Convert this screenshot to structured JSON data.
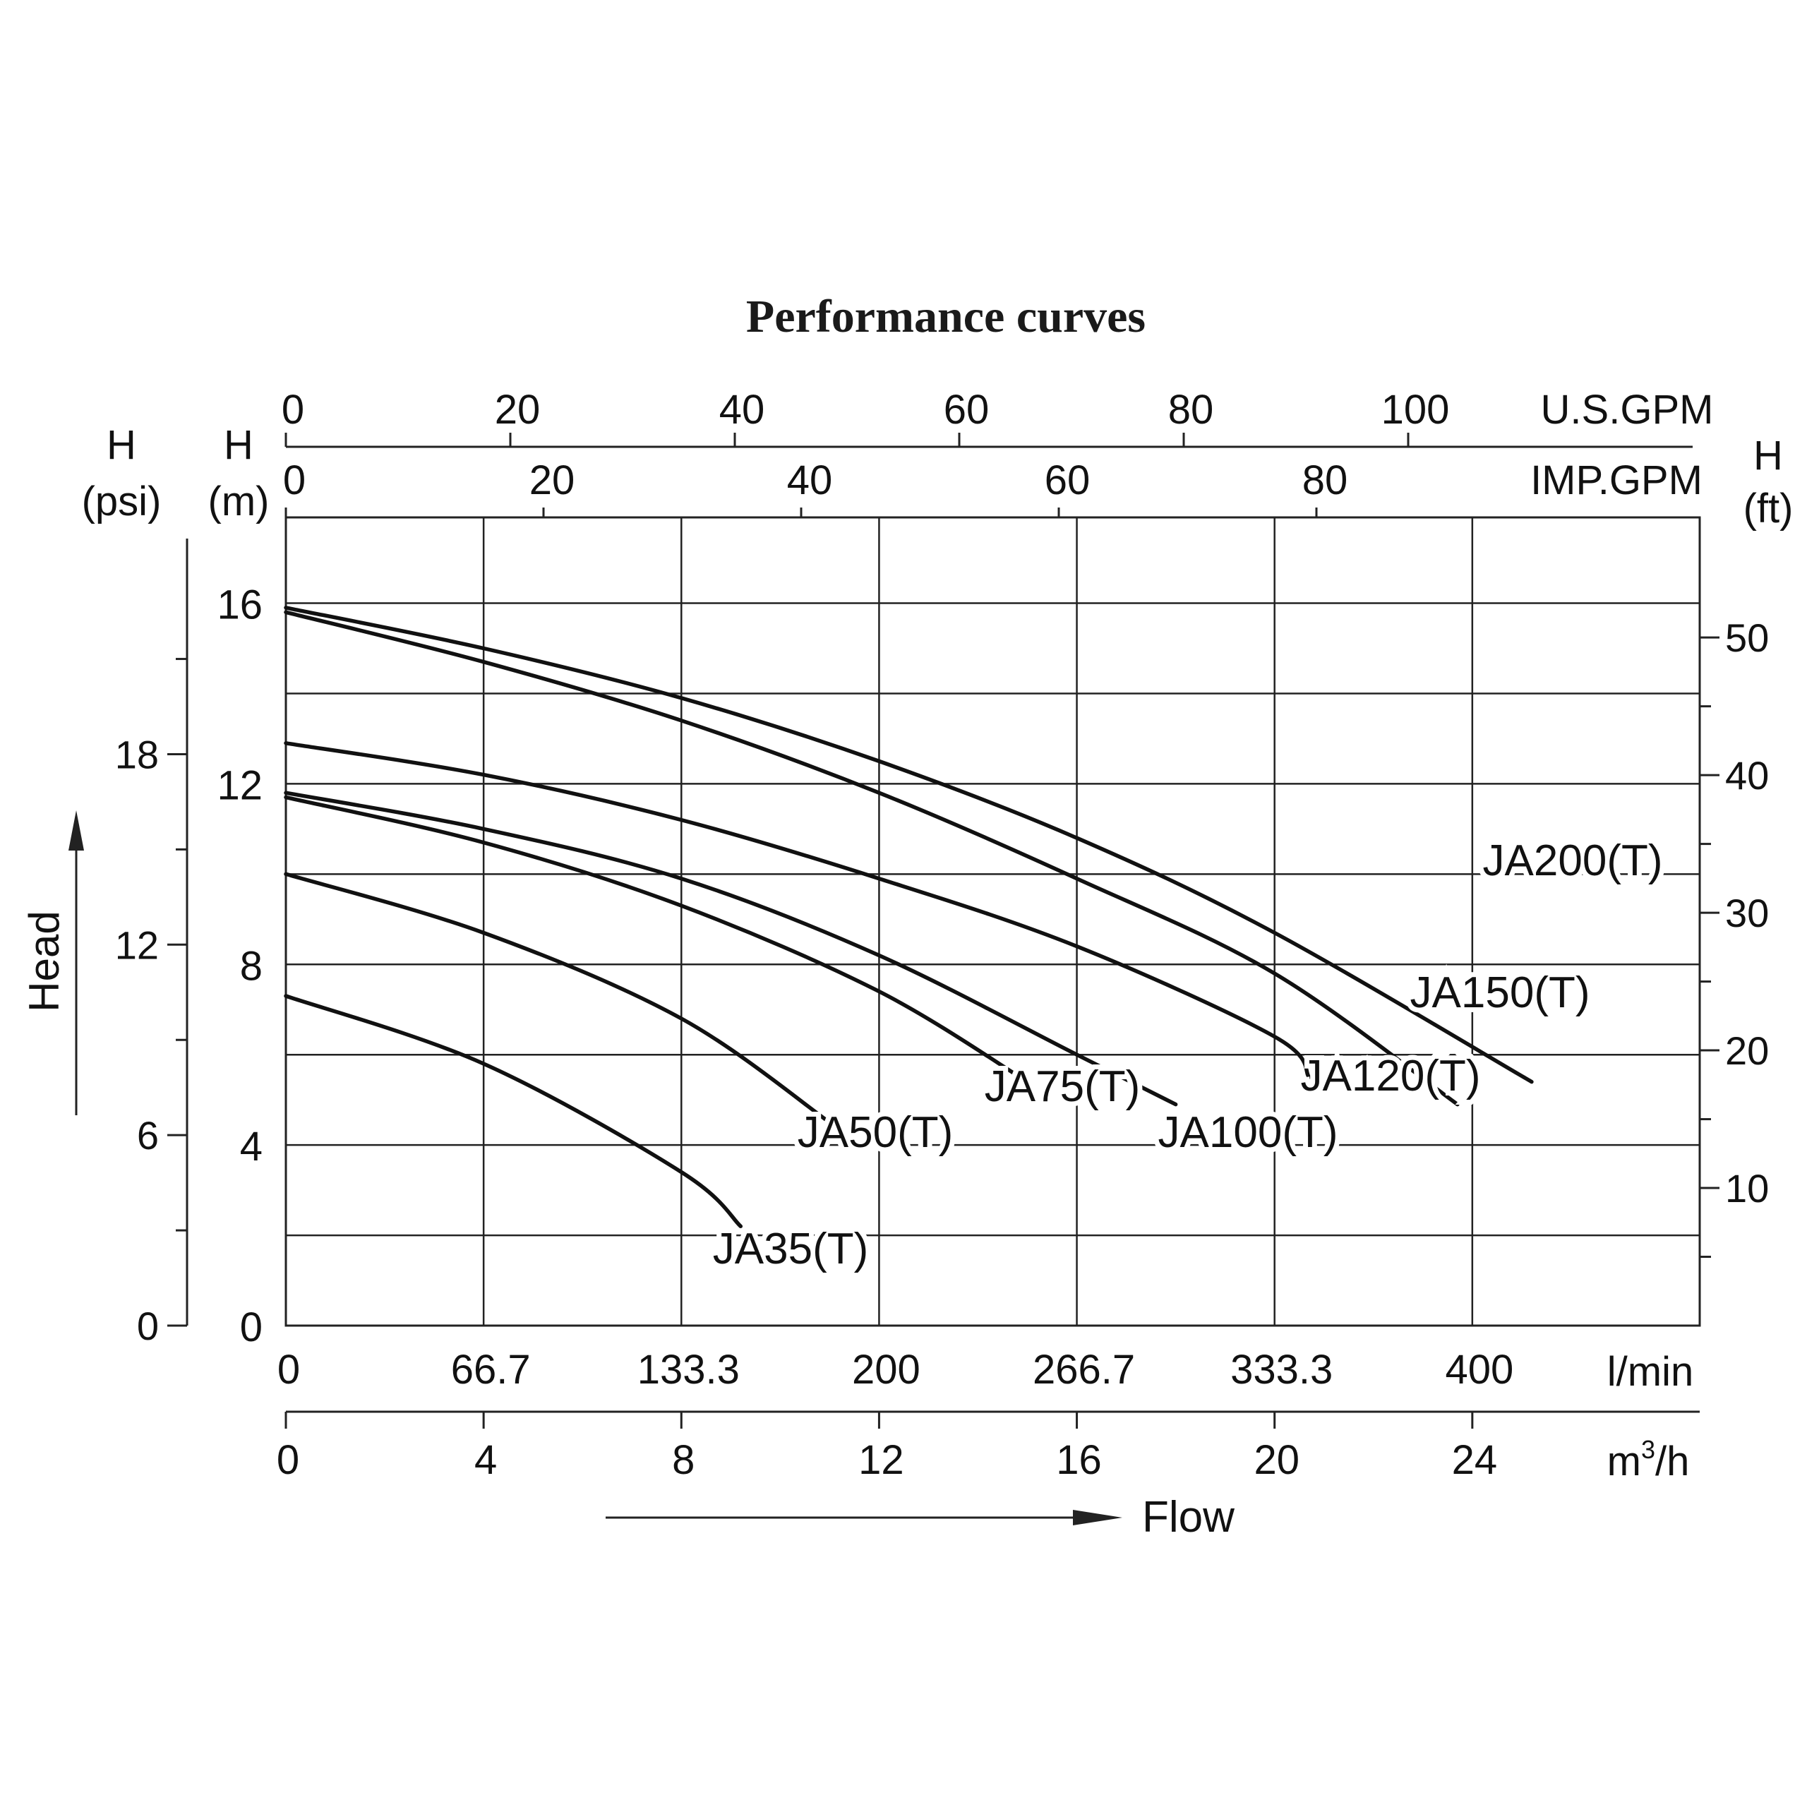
{
  "chart_data": {
    "type": "line",
    "title": "Performance curves",
    "x_axis": {
      "unit": "m³/h",
      "range": [
        0,
        28
      ],
      "ticks": [
        0,
        4,
        8,
        12,
        16,
        20,
        24
      ],
      "tick_labels": [
        "0",
        "4",
        "8",
        "12",
        "16",
        "20",
        "24"
      ],
      "unit_label_base": "m",
      "unit_label_sup": "3",
      "unit_label_rest": "/h"
    },
    "x_axis_lmin": {
      "unit": "l/min",
      "tick_labels": [
        "0",
        "66.7",
        "133.3",
        "200",
        "266.7",
        "333.3",
        "400"
      ]
    },
    "x_axis_usgpm": {
      "unit": "U.S.GPM",
      "tick_values": [
        0,
        20,
        40,
        60,
        80,
        100
      ],
      "tick_labels": [
        "0",
        "20",
        "40",
        "60",
        "80",
        "100"
      ]
    },
    "x_axis_impgpm": {
      "unit": "IMP.GPM",
      "tick_values": [
        0,
        20,
        40,
        60,
        80
      ],
      "tick_labels": [
        "0",
        "20",
        "40",
        "60",
        "80"
      ]
    },
    "y_axis": {
      "label_top": "H",
      "label_unit": "(m)",
      "range": [
        0,
        16
      ],
      "ticks": [
        0,
        4,
        8,
        12,
        16
      ],
      "tick_labels": [
        "0",
        "4",
        "8",
        "12",
        "16"
      ],
      "minor_ticks": [
        2,
        6,
        10,
        14
      ]
    },
    "y_axis_psi": {
      "label_top": "H",
      "label_unit": "(psi)",
      "tick_values": [
        0,
        6,
        12,
        18
      ],
      "tick_labels": [
        "0",
        "6",
        "12",
        "18"
      ]
    },
    "y_axis_ft": {
      "label_top": "H",
      "label_unit": "(ft)",
      "tick_values": [
        10,
        20,
        30,
        40,
        50
      ],
      "tick_labels": [
        "10",
        "20",
        "30",
        "40",
        "50"
      ]
    },
    "head_axis_label": "Head",
    "flow_axis_label": "Flow",
    "grid": true,
    "series": [
      {
        "name": "JA200(T)",
        "x": [
          0,
          4,
          8,
          12,
          16,
          20,
          25.2
        ],
        "y": [
          15.9,
          15.0,
          13.9,
          12.5,
          10.8,
          8.7,
          5.4
        ]
      },
      {
        "name": "JA150(T)",
        "x": [
          0,
          4,
          8,
          12,
          16,
          20,
          23.7
        ],
        "y": [
          15.8,
          14.7,
          13.4,
          11.8,
          9.9,
          7.8,
          4.9
        ]
      },
      {
        "name": "JA120(T)",
        "x": [
          0,
          4,
          8,
          12,
          16,
          20,
          20.7
        ],
        "y": [
          12.9,
          12.2,
          11.2,
          9.9,
          8.4,
          6.4,
          5.5
        ]
      },
      {
        "name": "JA100(T)",
        "x": [
          0,
          4,
          8,
          12,
          16,
          18.0
        ],
        "y": [
          11.8,
          11.0,
          9.9,
          8.2,
          6.0,
          4.9
        ]
      },
      {
        "name": "JA75(T)",
        "x": [
          0,
          4,
          8,
          12,
          15.0
        ],
        "y": [
          11.7,
          10.7,
          9.3,
          7.4,
          5.4
        ]
      },
      {
        "name": "JA50(T)",
        "x": [
          0,
          4,
          8,
          11.0
        ],
        "y": [
          10.0,
          8.7,
          6.8,
          4.5
        ]
      },
      {
        "name": "JA35(T)",
        "x": [
          0,
          4,
          8,
          9.2
        ],
        "y": [
          7.3,
          5.8,
          3.4,
          2.2
        ]
      }
    ]
  }
}
